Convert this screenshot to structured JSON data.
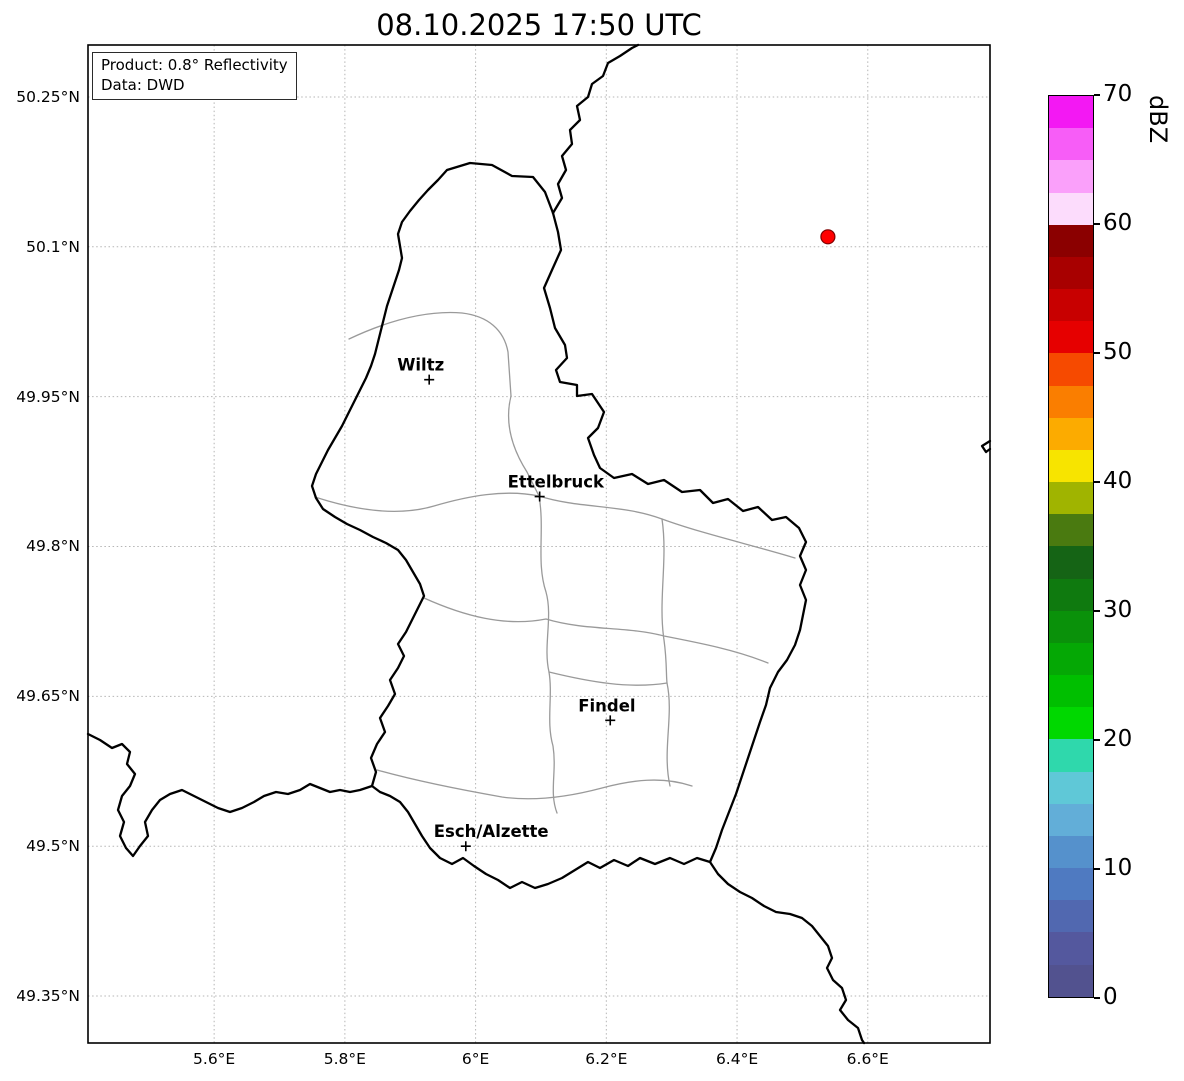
{
  "title": "08.10.2025 17:50 UTC",
  "info_box": {
    "product": "Product: 0.8° Reflectivity",
    "source": "Data: DWD"
  },
  "axes": {
    "lon_min": 5.407,
    "lon_max": 6.787,
    "lat_min": 49.303,
    "lat_max": 50.302,
    "x_ticks": [
      {
        "value": 5.6,
        "label": "5.6°E"
      },
      {
        "value": 5.8,
        "label": "5.8°E"
      },
      {
        "value": 6.0,
        "label": "6°E"
      },
      {
        "value": 6.2,
        "label": "6.2°E"
      },
      {
        "value": 6.4,
        "label": "6.4°E"
      },
      {
        "value": 6.6,
        "label": "6.6°E"
      }
    ],
    "y_ticks": [
      {
        "value": 50.25,
        "label": "50.25°N"
      },
      {
        "value": 50.1,
        "label": "50.1°N"
      },
      {
        "value": 49.95,
        "label": "49.95°N"
      },
      {
        "value": 49.8,
        "label": "49.8°N"
      },
      {
        "value": 49.65,
        "label": "49.65°N"
      },
      {
        "value": 49.5,
        "label": "49.5°N"
      },
      {
        "value": 49.35,
        "label": "49.35°N"
      }
    ]
  },
  "cities": [
    {
      "name": "Wiltz",
      "lon": 5.929,
      "lat": 49.967
    },
    {
      "name": "Ettelbruck",
      "lon": 6.098,
      "lat": 49.85
    },
    {
      "name": "Findel",
      "lon": 6.206,
      "lat": 49.626
    },
    {
      "name": "Esch/Alzette",
      "lon": 5.985,
      "lat": 49.5
    }
  ],
  "radar_marker": {
    "lon": 6.539,
    "lat": 50.11,
    "color": "#ff0000",
    "edge_color": "#7f0000"
  },
  "colorbar": {
    "title": "dBZ",
    "min": 0,
    "max": 70,
    "ticks": [
      {
        "value": 70,
        "label": "70"
      },
      {
        "value": 60,
        "label": "60"
      },
      {
        "value": 50,
        "label": "50"
      },
      {
        "value": 40,
        "label": "40"
      },
      {
        "value": 30,
        "label": "30"
      },
      {
        "value": 20,
        "label": "20"
      },
      {
        "value": 10,
        "label": "10"
      },
      {
        "value": 0,
        "label": "0"
      }
    ],
    "bands_top_to_bottom": [
      "#f318f3",
      "#f75df7",
      "#faa0fa",
      "#fcdcfc",
      "#8b0000",
      "#a80000",
      "#c80000",
      "#e60000",
      "#f64a00",
      "#fa7e00",
      "#fcab00",
      "#f7e400",
      "#a0b400",
      "#4a7a10",
      "#156415",
      "#0f7a0f",
      "#0a910a",
      "#05a805",
      "#00bf00",
      "#00d800",
      "#2fd8ac",
      "#5fc8d7",
      "#62aed8",
      "#5591cc",
      "#4f7ac1",
      "#5168b0",
      "#54589e",
      "#52528f"
    ]
  }
}
